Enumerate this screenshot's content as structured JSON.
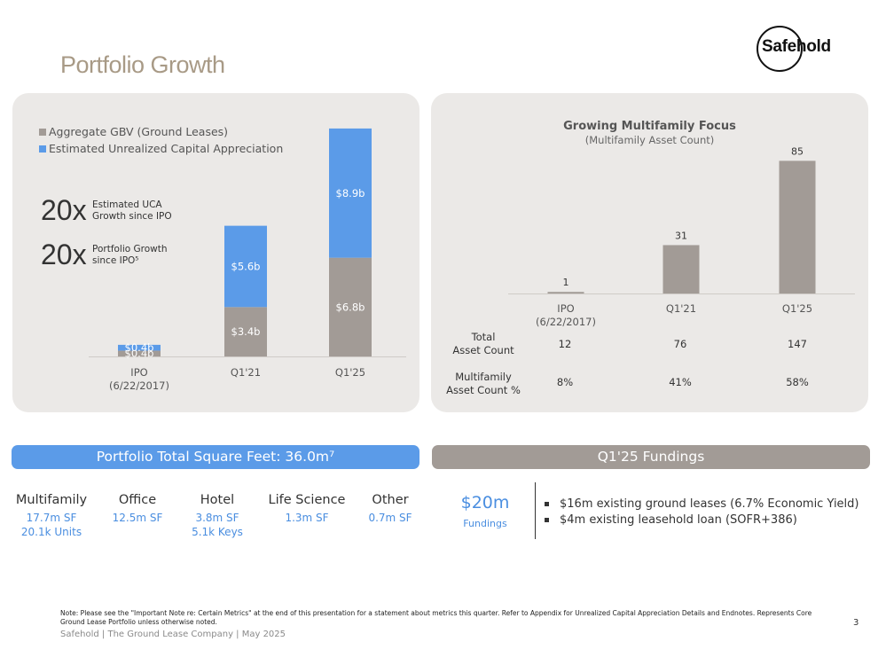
{
  "title": "Portfolio Growth",
  "logo": {
    "text": "Safehold"
  },
  "left_panel": {
    "legend": [
      {
        "label": "Aggregate GBV (Ground Leases)",
        "color": "#a29b96"
      },
      {
        "label": "Estimated Unrealized Capital Appreciation",
        "color": "#5b9be8"
      }
    ],
    "stats": [
      {
        "big": "20x",
        "label_line1": "Estimated UCA",
        "label_line2": "Growth since IPO"
      },
      {
        "big": "20x",
        "label_line1": "Portfolio Growth",
        "label_line2": "since IPO⁵"
      }
    ]
  },
  "chart_data": [
    {
      "type": "bar",
      "stacked": true,
      "categories": [
        "IPO\n(6/22/2017)",
        "Q1'21",
        "Q1'25"
      ],
      "category_lines": [
        [
          "IPO",
          "(6/22/2017)"
        ],
        [
          "Q1'21"
        ],
        [
          "Q1'25"
        ]
      ],
      "series": [
        {
          "name": "Aggregate GBV (Ground Leases)",
          "values": [
            0.4,
            3.4,
            6.8
          ],
          "labels": [
            "$0.4b",
            "$3.4b",
            "$6.8b"
          ],
          "color": "#a29b96"
        },
        {
          "name": "Estimated Unrealized Capital Appreciation",
          "values": [
            0.4,
            5.6,
            8.9
          ],
          "labels": [
            "$0.4b",
            "$5.6b",
            "$8.9b"
          ],
          "color": "#5b9be8"
        }
      ],
      "ylim": [
        0,
        16
      ],
      "title": "",
      "xlabel": "",
      "ylabel": "",
      "legend": "top-left"
    },
    {
      "type": "bar",
      "title": "Growing Multifamily Focus",
      "subtitle": "(Multifamily Asset Count)",
      "categories": [
        "IPO\n(6/22/2017)",
        "Q1'21",
        "Q1'25"
      ],
      "category_lines": [
        [
          "IPO",
          "(6/22/2017)"
        ],
        [
          "Q1'21"
        ],
        [
          "Q1'25"
        ]
      ],
      "values": [
        1,
        31,
        85
      ],
      "color": "#a29b96",
      "ylim": [
        0,
        100
      ],
      "xlabel": "",
      "ylabel": ""
    }
  ],
  "right_table": {
    "rows": [
      {
        "label_line1": "Total",
        "label_line2": "Asset Count",
        "values": [
          "12",
          "76",
          "147"
        ]
      },
      {
        "label_line1": "Multifamily",
        "label_line2": "Asset Count %",
        "values": [
          "8%",
          "41%",
          "58%"
        ]
      }
    ]
  },
  "sqft_bar": {
    "label": "Portfolio Total Square Feet: 36.0m⁷"
  },
  "fundings_bar": {
    "label": "Q1'25 Fundings"
  },
  "sectors": [
    {
      "name": "Multifamily",
      "line1": "17.7m SF",
      "line2": "20.1k Units"
    },
    {
      "name": "Office",
      "line1": "12.5m SF",
      "line2": ""
    },
    {
      "name": "Hotel",
      "line1": "3.8m SF",
      "line2": "5.1k Keys"
    },
    {
      "name": "Life Science",
      "line1": "1.3m SF",
      "line2": ""
    },
    {
      "name": "Other",
      "line1": "0.7m SF",
      "line2": ""
    }
  ],
  "fundings": {
    "amount": "$20m",
    "amount_label": "Fundings",
    "items": [
      "$16m existing ground leases (6.7% Economic Yield)",
      "$4m existing leasehold loan (SOFR+386)"
    ]
  },
  "note": "Note: Please see the \"Important Note re: Certain Metrics\" at the end of this presentation for a statement about metrics this quarter. Refer to Appendix for Unrealized Capital Appreciation Details and Endnotes. Represents Core Ground Lease Portfolio unless otherwise noted.",
  "footer": "Safehold | The Ground Lease Company | May 2025",
  "page_number": "3"
}
